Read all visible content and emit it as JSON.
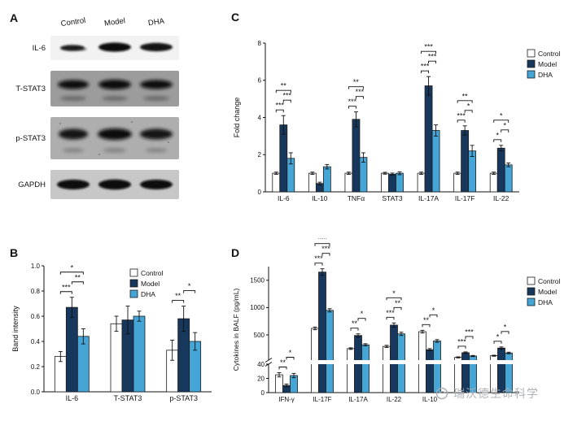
{
  "colors": {
    "control": "#ffffff",
    "model": "#17375d",
    "dha": "#45a5d6"
  },
  "watermark": {
    "text": "瑞沃德生命科学"
  },
  "panels": {
    "A": {
      "label": "A",
      "columns": [
        "Control",
        "Model",
        "DHA"
      ],
      "rows": [
        "IL-6",
        "T-STAT3",
        "p-STAT3",
        "GAPDH"
      ]
    },
    "B": {
      "label": "B"
    },
    "C": {
      "label": "C"
    },
    "D": {
      "label": "D"
    }
  },
  "chart_data": [
    {
      "id": "chartB",
      "type": "bar",
      "title": "",
      "xlabel": "",
      "ylabel": "Band intensity",
      "ylim": [
        0,
        1
      ],
      "yticks": [
        0,
        0.2,
        0.4,
        0.6,
        0.8,
        1
      ],
      "grid": false,
      "legend_position": "top-right-inside",
      "categories": [
        "IL-6",
        "T-STAT3",
        "p-STAT3"
      ],
      "series": [
        {
          "name": "Control",
          "color": "#ffffff",
          "values": [
            0.28,
            0.54,
            0.33
          ],
          "errors": [
            0.04,
            0.06,
            0.08
          ]
        },
        {
          "name": "Model",
          "color": "#17375d",
          "values": [
            0.67,
            0.57,
            0.58
          ],
          "errors": [
            0.08,
            0.11,
            0.1
          ]
        },
        {
          "name": "DHA",
          "color": "#45a5d6",
          "values": [
            0.44,
            0.6,
            0.4
          ],
          "errors": [
            0.06,
            0.04,
            0.07
          ]
        }
      ],
      "significance": [
        {
          "cat": 0,
          "a": 0,
          "b": 1,
          "label": "***"
        },
        {
          "cat": 0,
          "a": 1,
          "b": 2,
          "label": "**"
        },
        {
          "cat": 0,
          "a": 0,
          "b": 2,
          "label": "*"
        },
        {
          "cat": 2,
          "a": 0,
          "b": 1,
          "label": "**"
        },
        {
          "cat": 2,
          "a": 1,
          "b": 2,
          "label": "*"
        }
      ]
    },
    {
      "id": "chartC",
      "type": "bar",
      "title": "",
      "xlabel": "",
      "ylabel": "Fold change",
      "ylim": [
        0,
        8
      ],
      "yticks": [
        0,
        2,
        4,
        6,
        8
      ],
      "grid": false,
      "legend_position": "right",
      "categories": [
        "IL-6",
        "IL-10",
        "TNFα",
        "STAT3",
        "IL-17A",
        "IL-17F",
        "IL-22"
      ],
      "series": [
        {
          "name": "Control",
          "color": "#ffffff",
          "values": [
            1,
            1,
            1,
            1,
            1,
            1,
            1
          ],
          "errors": [
            0.06,
            0.06,
            0.06,
            0.05,
            0.06,
            0.06,
            0.06
          ]
        },
        {
          "name": "Model",
          "color": "#17375d",
          "values": [
            3.6,
            0.45,
            3.9,
            0.95,
            5.7,
            3.3,
            2.35
          ],
          "errors": [
            0.5,
            0.07,
            0.4,
            0.06,
            0.5,
            0.25,
            0.15
          ]
        },
        {
          "name": "DHA",
          "color": "#45a5d6",
          "values": [
            1.8,
            1.35,
            1.85,
            1,
            3.3,
            2.2,
            1.45
          ],
          "errors": [
            0.3,
            0.12,
            0.25,
            0.08,
            0.3,
            0.3,
            0.1
          ]
        }
      ],
      "significance": [
        {
          "cat": 0,
          "a": 0,
          "b": 1,
          "label": "***"
        },
        {
          "cat": 0,
          "a": 1,
          "b": 2,
          "label": "***"
        },
        {
          "cat": 0,
          "a": 0,
          "b": 2,
          "label": "**"
        },
        {
          "cat": 2,
          "a": 0,
          "b": 1,
          "label": "***"
        },
        {
          "cat": 2,
          "a": 1,
          "b": 2,
          "label": "***"
        },
        {
          "cat": 2,
          "a": 0,
          "b": 2,
          "label": "**"
        },
        {
          "cat": 4,
          "a": 0,
          "b": 1,
          "label": "***"
        },
        {
          "cat": 4,
          "a": 1,
          "b": 2,
          "label": "***"
        },
        {
          "cat": 4,
          "a": 0,
          "b": 2,
          "label": "***"
        },
        {
          "cat": 5,
          "a": 0,
          "b": 1,
          "label": "***"
        },
        {
          "cat": 5,
          "a": 1,
          "b": 2,
          "label": "*"
        },
        {
          "cat": 5,
          "a": 0,
          "b": 2,
          "label": "**"
        },
        {
          "cat": 6,
          "a": 0,
          "b": 1,
          "label": "*"
        },
        {
          "cat": 6,
          "a": 1,
          "b": 2,
          "label": "*"
        },
        {
          "cat": 6,
          "a": 0,
          "b": 2,
          "label": "*"
        }
      ]
    },
    {
      "id": "chartD",
      "type": "bar",
      "title": "",
      "xlabel": "",
      "ylabel": "Cytokines in BALF (pg/mL)",
      "axis_break": true,
      "segments": [
        {
          "ylim": [
            0,
            40
          ],
          "yticks": [
            0,
            20,
            40
          ]
        },
        {
          "ylim": [
            40,
            1750
          ],
          "yticks": [
            500,
            1000,
            1500
          ]
        }
      ],
      "grid": false,
      "legend_position": "right",
      "categories": [
        "IFN-γ",
        "IL-17F",
        "IL-17A",
        "IL-22",
        "IL-10",
        "",
        ""
      ],
      "series": [
        {
          "name": "Control",
          "color": "#ffffff",
          "values": [
            25,
            620,
            250,
            290,
            560,
            90,
            120
          ],
          "errors": [
            3,
            25,
            15,
            20,
            25,
            10,
            10
          ]
        },
        {
          "name": "Model",
          "color": "#17375d",
          "values": [
            10,
            1650,
            490,
            680,
            230,
            175,
            260
          ],
          "errors": [
            2,
            60,
            30,
            40,
            20,
            15,
            20
          ]
        },
        {
          "name": "DHA",
          "color": "#45a5d6",
          "values": [
            24,
            950,
            320,
            520,
            390,
            115,
            170
          ],
          "errors": [
            3,
            30,
            20,
            30,
            25,
            10,
            15
          ]
        }
      ],
      "significance": [
        {
          "cat": 0,
          "a": 0,
          "b": 1,
          "label": "**"
        },
        {
          "cat": 0,
          "a": 1,
          "b": 2,
          "label": "*"
        },
        {
          "cat": 1,
          "a": 0,
          "b": 1,
          "label": "***"
        },
        {
          "cat": 1,
          "a": 1,
          "b": 2,
          "label": "***"
        },
        {
          "cat": 1,
          "a": 0,
          "b": 2,
          "label": "***"
        },
        {
          "cat": 2,
          "a": 0,
          "b": 1,
          "label": "**"
        },
        {
          "cat": 2,
          "a": 1,
          "b": 2,
          "label": "*"
        },
        {
          "cat": 3,
          "a": 0,
          "b": 1,
          "label": "***"
        },
        {
          "cat": 3,
          "a": 1,
          "b": 2,
          "label": "**"
        },
        {
          "cat": 3,
          "a": 0,
          "b": 2,
          "label": "*"
        },
        {
          "cat": 4,
          "a": 0,
          "b": 1,
          "label": "**"
        },
        {
          "cat": 4,
          "a": 1,
          "b": 2,
          "label": "*"
        },
        {
          "cat": 5,
          "a": 0,
          "b": 1,
          "label": "***"
        },
        {
          "cat": 5,
          "a": 1,
          "b": 2,
          "label": "***"
        },
        {
          "cat": 6,
          "a": 0,
          "b": 1,
          "label": "*"
        },
        {
          "cat": 6,
          "a": 1,
          "b": 2,
          "label": "*"
        }
      ]
    }
  ]
}
